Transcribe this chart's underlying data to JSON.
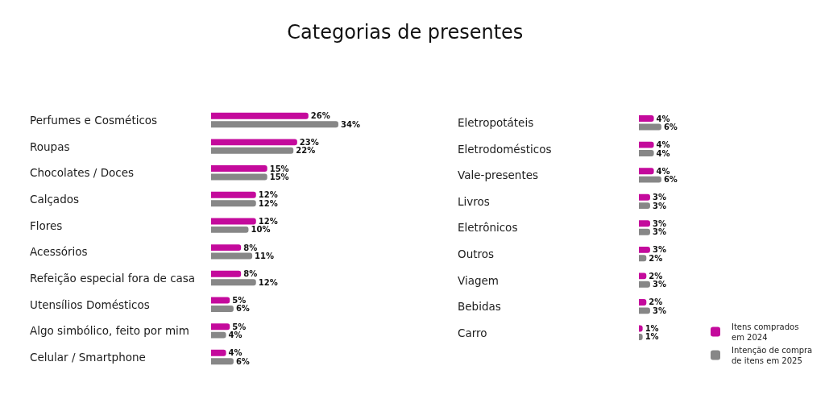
{
  "chart_data": [
    {
      "type": "bar",
      "orientation": "horizontal",
      "title": "Categorias de presentes",
      "tick_labels": "y",
      "legend": "bottom right",
      "categories": [
        "Perfumes e Cosméticos",
        "Roupas",
        "Chocolates / Doces",
        "Calçados",
        "Flores",
        "Acessórios",
        "Refeição especial fora de casa",
        "Utensílios Domésticos",
        "Algo simbólico, feito por mim",
        "Celular / Smartphone"
      ],
      "series": [
        {
          "name": "Itens comprados em 2024",
          "color": "#c40a9c",
          "values": [
            26,
            23,
            15,
            12,
            12,
            8,
            8,
            5,
            5,
            4
          ],
          "value_labels": [
            "26%",
            "23%",
            "15%",
            "12%",
            "12%",
            "8%",
            "8%",
            "5%",
            "5%",
            "4%"
          ]
        },
        {
          "name": "Intenção de compra de itens em 2025",
          "color": "#878787",
          "values": [
            34,
            22,
            15,
            12,
            10,
            11,
            12,
            6,
            4,
            6
          ],
          "value_labels": [
            "34%",
            "22%",
            "15%",
            "12%",
            "10%",
            "11%",
            "12%",
            "6%",
            "4%",
            "6%"
          ]
        }
      ]
    },
    {
      "type": "bar",
      "orientation": "horizontal",
      "tick_labels": "y",
      "categories": [
        "Eletropotáteis",
        "Eletrodomésticos",
        "Vale-presentes",
        "Livros",
        "Eletrônicos",
        "Outros",
        "Viagem",
        "Bebidas",
        "Carro"
      ],
      "series": [
        {
          "color": "#c40a9c",
          "values": [
            4,
            4,
            4,
            3,
            3,
            3,
            2,
            2,
            1
          ],
          "value_labels": [
            "4%",
            "4%",
            "4%",
            "3%",
            "3%",
            "3%",
            "2%",
            "2%",
            "1%"
          ]
        },
        {
          "color": "#878787",
          "values": [
            6,
            4,
            6,
            3,
            3,
            2,
            3,
            3,
            1
          ],
          "value_labels": [
            "6%",
            "4%",
            "6%",
            "3%",
            "3%",
            "2%",
            "3%",
            "3%",
            "1%"
          ]
        }
      ]
    }
  ]
}
